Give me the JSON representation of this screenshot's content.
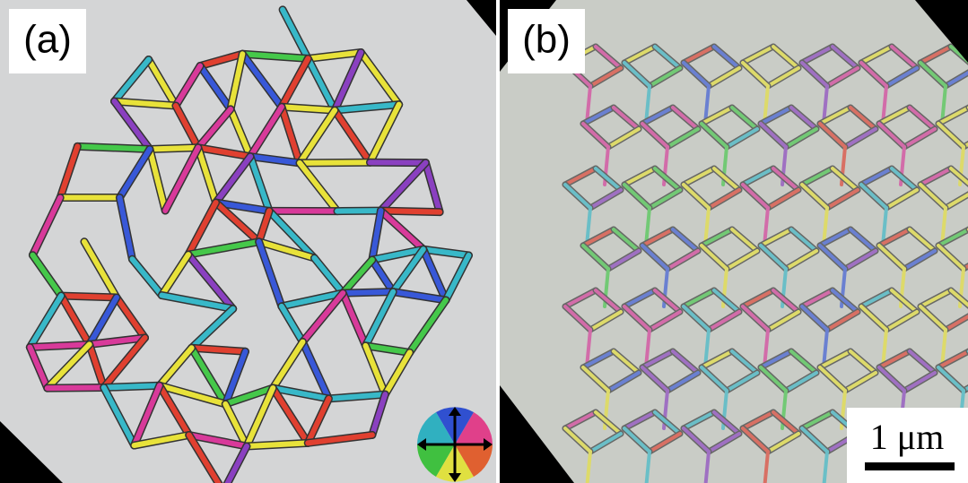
{
  "panels": [
    {
      "label": "(a)"
    },
    {
      "label": "(b)"
    }
  ],
  "scale_bar": {
    "label": "1 μm"
  }
}
